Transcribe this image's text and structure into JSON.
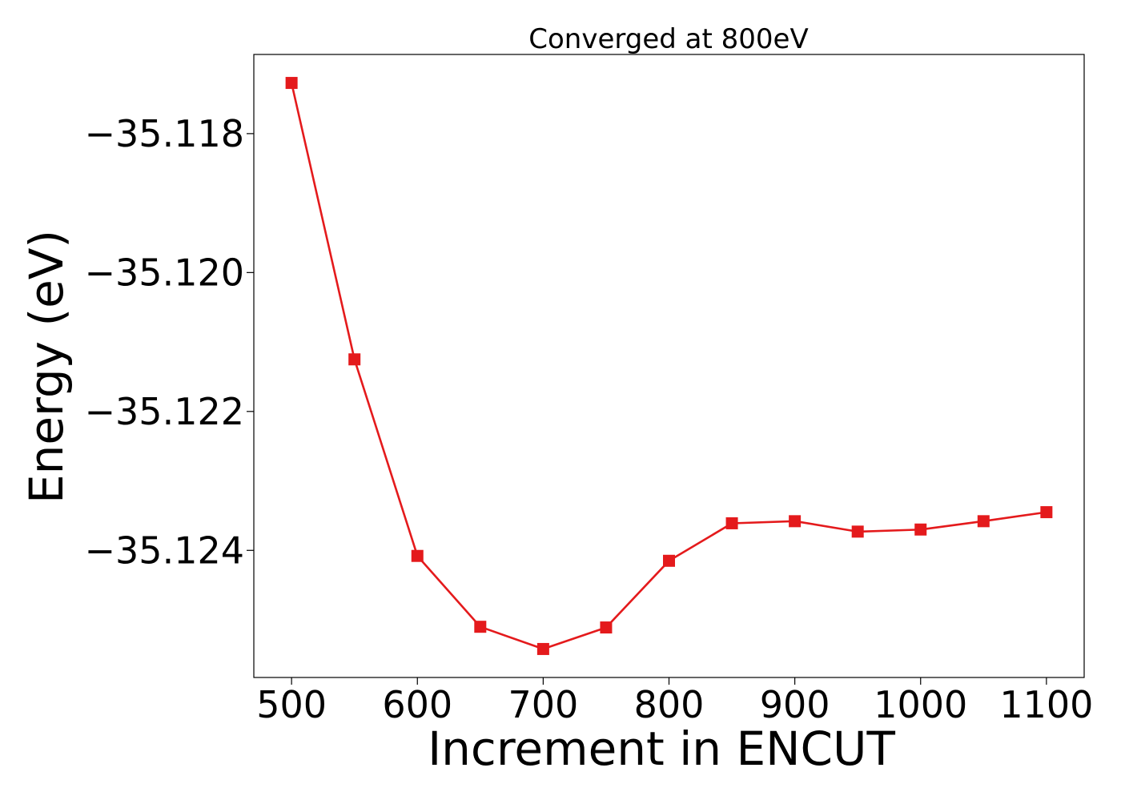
{
  "chart_data": {
    "type": "line",
    "title": "Converged at 800eV",
    "xlabel": "Increment in ENCUT",
    "ylabel": "Energy (eV)",
    "x": [
      500,
      550,
      600,
      650,
      700,
      750,
      800,
      850,
      900,
      950,
      1000,
      1050,
      1100
    ],
    "series": [
      {
        "values": [
          -35.11727,
          -35.12125,
          -35.12408,
          -35.1251,
          -35.12542,
          -35.12511,
          -35.12415,
          -35.12361,
          -35.12358,
          -35.12373,
          -35.1237,
          -35.12358,
          -35.12345
        ],
        "color": "#e41a1c",
        "marker": "square"
      }
    ],
    "xticks": [
      500,
      600,
      700,
      800,
      900,
      1000,
      1100
    ],
    "xtick_labels": [
      "500",
      "600",
      "700",
      "800",
      "900",
      "1000",
      "1100"
    ],
    "yticks": [
      -35.118,
      -35.12,
      -35.122,
      -35.124
    ],
    "ytick_labels": [
      "−35.118",
      "−35.120",
      "−35.122",
      "−35.124"
    ],
    "xlim": [
      470,
      1130
    ],
    "ylim": [
      -35.12583,
      -35.11686
    ],
    "grid": false,
    "legend": false
  }
}
